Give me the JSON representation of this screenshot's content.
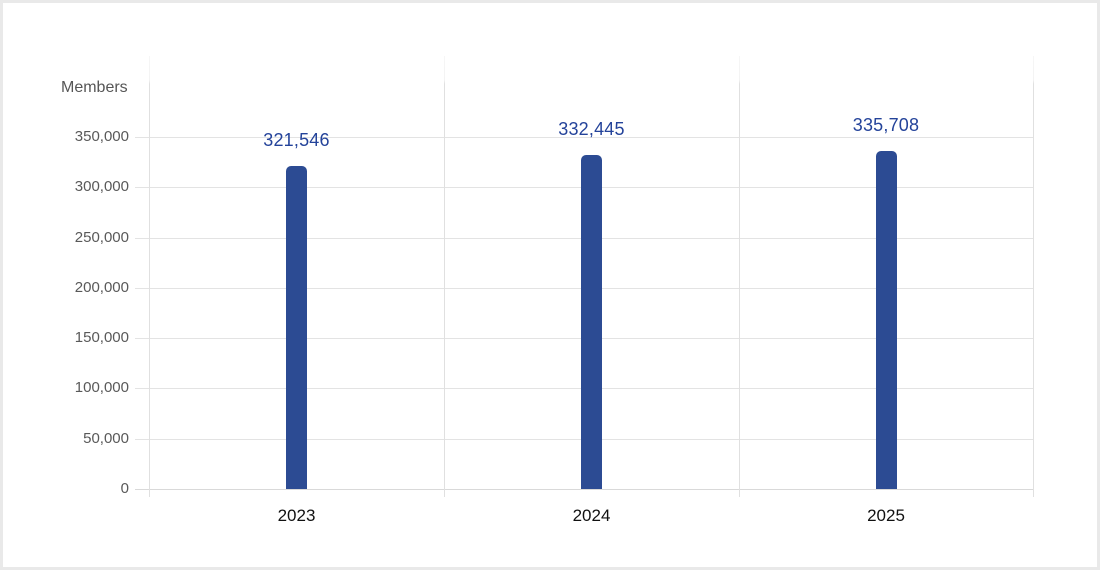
{
  "chart_data": {
    "type": "bar",
    "title": "Members",
    "ylabel": "Members",
    "xlabel": "",
    "categories": [
      "2023",
      "2024",
      "2025"
    ],
    "values": [
      321546,
      332445,
      335708
    ],
    "value_labels": [
      "321,546",
      "332,445",
      "335,708"
    ],
    "ylim": [
      0,
      350000
    ],
    "ytick_step": 50000,
    "yticks": [
      0,
      50000,
      100000,
      150000,
      200000,
      250000,
      300000,
      350000
    ],
    "ytick_labels": [
      "0",
      "50,000",
      "100,000",
      "150,000",
      "200,000",
      "250,000",
      "300,000",
      "350,000"
    ],
    "grid": true,
    "legend_position": "none",
    "colors": {
      "bar": "#2c4b93",
      "value_label": "#24439a",
      "ytick_label": "#595959",
      "category_label": "#111111",
      "gridline": "#e3e3e3",
      "border": "#e9e9e9",
      "background": "#ffffff"
    }
  }
}
